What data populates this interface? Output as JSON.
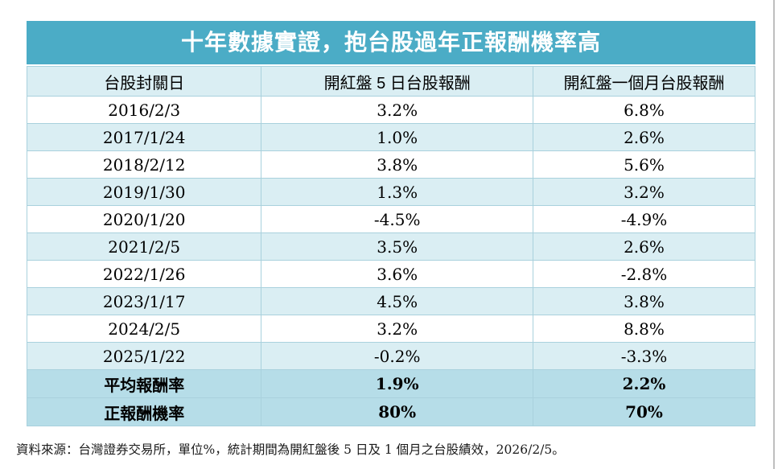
{
  "title": "十年數據實證，抱台股過年正報酬機率高",
  "table": {
    "columns": {
      "date": "台股封關日",
      "five_day": "開紅盤 5 日台股報酬",
      "one_month": "開紅盤一個月台股報酬"
    },
    "rows": [
      {
        "date": "2016/2/3",
        "five_day": "3.2%",
        "one_month": "6.8%"
      },
      {
        "date": "2017/1/24",
        "five_day": "1.0%",
        "one_month": "2.6%"
      },
      {
        "date": "2018/2/12",
        "five_day": "3.8%",
        "one_month": "5.6%"
      },
      {
        "date": "2019/1/30",
        "five_day": "1.3%",
        "one_month": "3.2%"
      },
      {
        "date": "2020/1/20",
        "five_day": "-4.5%",
        "one_month": "-4.9%"
      },
      {
        "date": "2021/2/5",
        "five_day": "3.5%",
        "one_month": "2.6%"
      },
      {
        "date": "2022/1/26",
        "five_day": "3.6%",
        "one_month": "-2.8%"
      },
      {
        "date": "2023/1/17",
        "five_day": "4.5%",
        "one_month": "3.8%"
      },
      {
        "date": "2024/2/5",
        "five_day": "3.2%",
        "one_month": "8.8%"
      },
      {
        "date": "2025/1/22",
        "five_day": "-0.2%",
        "one_month": "-3.3%"
      }
    ],
    "summary": [
      {
        "label": "平均報酬率",
        "five_day": "1.9%",
        "one_month": "2.2%"
      },
      {
        "label": "正報酬機率",
        "five_day": "80%",
        "one_month": "70%"
      }
    ]
  },
  "footer": "資料來源：台灣證券交易所，單位%，統計期間為開紅盤後 5 日及 1 個月之台股績效，2026/2/5。",
  "colors": {
    "title_bar": "#4BACC6",
    "stripe_row": "#DAEEF3",
    "summary_row": "#B6DDE8",
    "cell_border": "#A9D1DD",
    "title_text": "#FFFFFF",
    "page_edge": "#BFBFBF"
  }
}
